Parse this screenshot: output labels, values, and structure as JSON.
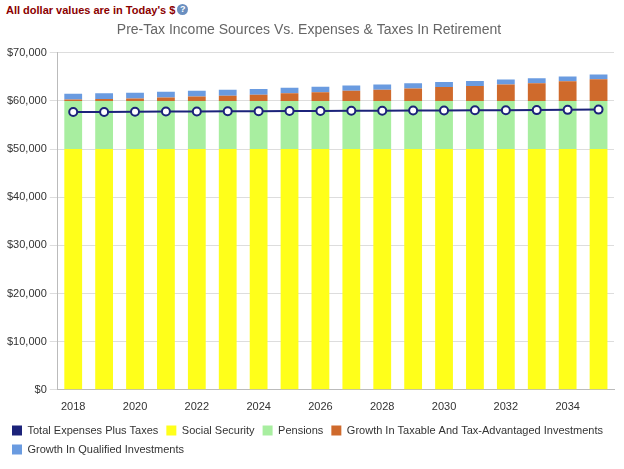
{
  "chart_data": {
    "type": "bar",
    "title": "Pre-Tax Income Sources Vs. Expenses & Taxes In Retirement",
    "annotation": "All dollar values are in Today's $",
    "annotation_icon": "?",
    "categories": [
      "2018",
      null,
      "2020",
      null,
      "2022",
      null,
      "2024",
      null,
      "2026",
      null,
      "2028",
      null,
      "2030",
      null,
      "2032",
      null,
      "2034",
      null
    ],
    "stacked": true,
    "grid": true,
    "legend": "bottom",
    "ylim": [
      0,
      70000
    ],
    "yticks": [
      {
        "value": 0,
        "label": "$0"
      },
      {
        "value": 10000,
        "label": "$10,000"
      },
      {
        "value": 20000,
        "label": "$20,000"
      },
      {
        "value": 30000,
        "label": "$30,000"
      },
      {
        "value": 40000,
        "label": "$40,000"
      },
      {
        "value": 50000,
        "label": "$50,000"
      },
      {
        "value": 60000,
        "label": "$60,000"
      },
      {
        "value": 70000,
        "label": "$70,000"
      }
    ],
    "series": [
      {
        "name": "Social Security",
        "type": "bar",
        "color": "#ffff1a",
        "values": [
          50000,
          50000,
          50000,
          50000,
          50000,
          50000,
          50000,
          50000,
          50000,
          50000,
          50000,
          50000,
          50000,
          50000,
          50000,
          50000,
          50000,
          50000
        ]
      },
      {
        "name": "Pensions",
        "type": "bar",
        "color": "#a8eea0",
        "values": [
          10000,
          10000,
          10000,
          10000,
          10000,
          10000,
          10000,
          10000,
          10000,
          10000,
          10000,
          10000,
          10000,
          10000,
          10000,
          10000,
          10000,
          10000
        ]
      },
      {
        "name": "Growth In Taxable And Tax-Advantaged Investments",
        "type": "bar",
        "color": "#cf6a2c",
        "values": [
          300,
          400,
          500,
          700,
          900,
          1100,
          1300,
          1600,
          1800,
          2100,
          2300,
          2600,
          2900,
          3100,
          3400,
          3700,
          4100,
          4500
        ]
      },
      {
        "name": "Growth In Qualified Investments",
        "type": "bar",
        "color": "#6a9be0",
        "values": [
          1200,
          1200,
          1200,
          1200,
          1200,
          1200,
          1200,
          1150,
          1150,
          1100,
          1100,
          1100,
          1050,
          1050,
          1050,
          1000,
          1000,
          1000
        ]
      },
      {
        "name": "Total Expenses Plus Taxes",
        "type": "line",
        "color": "#1c237a",
        "marker": "circle",
        "line_style": "solid",
        "values": [
          57700,
          57700,
          57750,
          57800,
          57800,
          57850,
          57850,
          57900,
          57900,
          57950,
          57950,
          58000,
          58000,
          58050,
          58050,
          58100,
          58150,
          58200
        ]
      }
    ]
  }
}
